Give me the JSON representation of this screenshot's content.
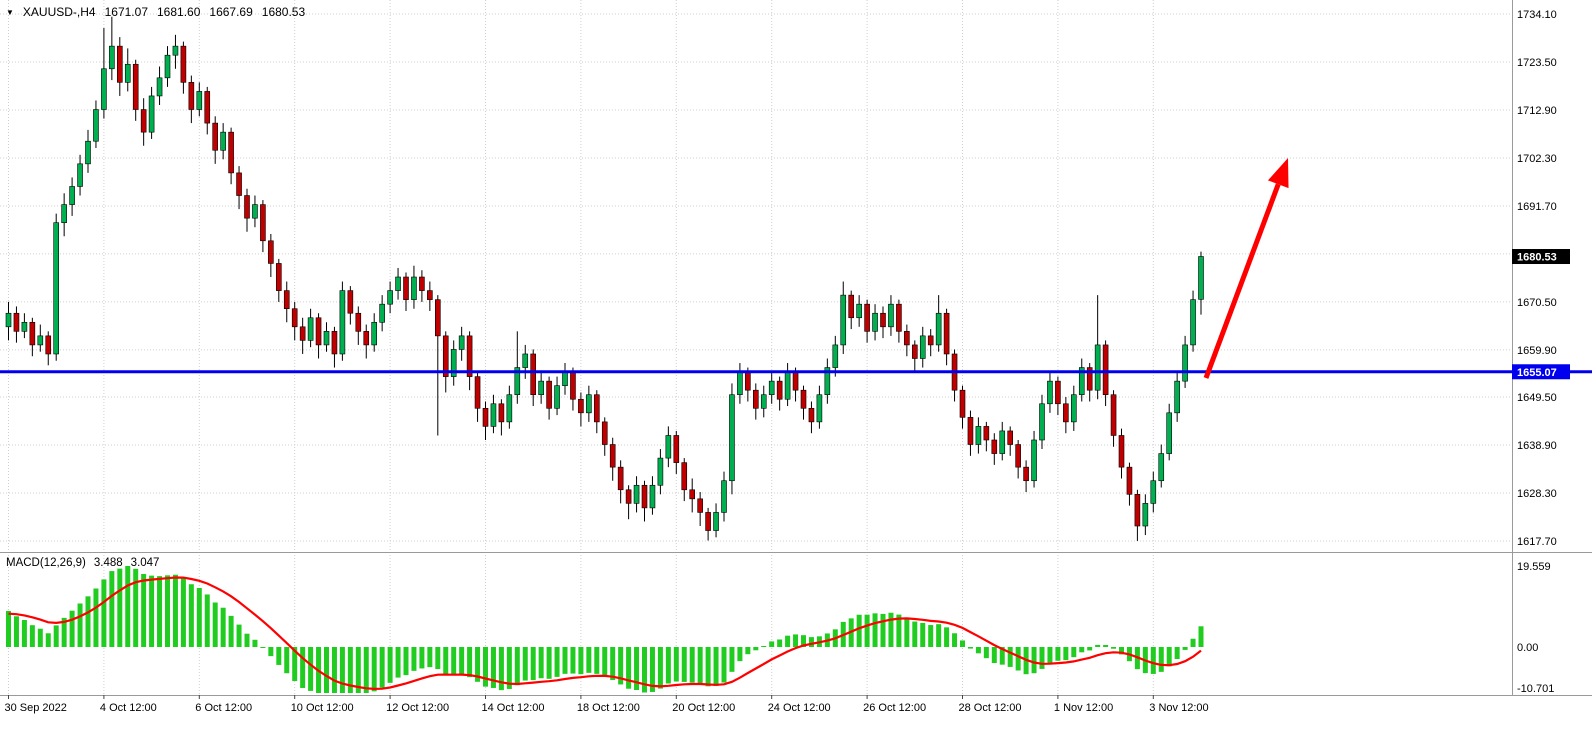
{
  "header": {
    "dropdown_icon": "▼",
    "symbol": "XAUUSD-,H4",
    "open": "1671.07",
    "high": "1681.60",
    "low": "1667.69",
    "close": "1680.53"
  },
  "indicator_label": {
    "name": "MACD(12,26,9)",
    "macd_value": "3.488",
    "signal_value": "3.047"
  },
  "chart_data": {
    "type": "candlestick",
    "symbol": "XAUUSD-",
    "timeframe": "H4",
    "x_axis": {
      "ticks": [
        {
          "i": 0,
          "label": "30 Sep 2022"
        },
        {
          "i": 12,
          "label": "4 Oct 12:00"
        },
        {
          "i": 24,
          "label": "6 Oct 12:00"
        },
        {
          "i": 36,
          "label": "10 Oct 12:00"
        },
        {
          "i": 48,
          "label": "12 Oct 12:00"
        },
        {
          "i": 60,
          "label": "14 Oct 12:00"
        },
        {
          "i": 72,
          "label": "18 Oct 12:00"
        },
        {
          "i": 84,
          "label": "20 Oct 12:00"
        },
        {
          "i": 96,
          "label": "24 Oct 12:00"
        },
        {
          "i": 108,
          "label": "26 Oct 12:00"
        },
        {
          "i": 120,
          "label": "28 Oct 12:00"
        },
        {
          "i": 132,
          "label": "1 Nov 12:00"
        },
        {
          "i": 144,
          "label": "3 Nov 12:00"
        }
      ]
    },
    "y_axis": {
      "ticks": [
        "1734.10",
        "1723.50",
        "1712.90",
        "1702.30",
        "1691.70",
        "1670.50",
        "1659.90",
        "1649.50",
        "1638.90",
        "1628.30",
        "1617.70"
      ],
      "range": [
        1613.0,
        1737.2
      ]
    },
    "current_price_tag": {
      "label": "1680.53",
      "price": 1680.53,
      "bg": "#000000",
      "fg": "#ffffff"
    },
    "horizontal_line": {
      "price": 1655.07,
      "label": "1655.07",
      "color": "#0000ee"
    },
    "trend_arrow": {
      "from": [
        1206,
        378
      ],
      "to": [
        1288,
        158
      ],
      "color": "#ff0000"
    },
    "macd": {
      "name": "MACD",
      "params": [
        12,
        26,
        9
      ],
      "ticks": [
        "19.559",
        "0.00",
        "-10.701"
      ],
      "max": 19.559,
      "min": -10.701,
      "histogram_color": "#1fcc1f",
      "signal_color": "#ff0000"
    },
    "colors": {
      "bull": "#00b050",
      "bear": "#c00000",
      "wick": "#000000",
      "grid": "#cfcfcf",
      "axis_text": "#000000",
      "bg": "#ffffff"
    },
    "candles": [
      [
        1665.0,
        1670.5,
        1662.0,
        1668.0
      ],
      [
        1668.0,
        1669.5,
        1661.5,
        1664.0
      ],
      [
        1664.0,
        1668.0,
        1662.5,
        1666.0
      ],
      [
        1666.0,
        1667.0,
        1658.5,
        1661.0
      ],
      [
        1661.0,
        1665.5,
        1659.5,
        1663.0
      ],
      [
        1663.0,
        1664.0,
        1656.5,
        1659.0
      ],
      [
        1659.0,
        1690.0,
        1657.5,
        1688.0
      ],
      [
        1688.0,
        1694.5,
        1685.0,
        1692.0
      ],
      [
        1692.0,
        1698.0,
        1689.5,
        1696.0
      ],
      [
        1696.0,
        1703.0,
        1694.0,
        1701.0
      ],
      [
        1701.0,
        1708.5,
        1699.0,
        1706.0
      ],
      [
        1706.0,
        1715.0,
        1704.5,
        1713.0
      ],
      [
        1713.0,
        1731.0,
        1711.0,
        1722.0
      ],
      [
        1722.0,
        1733.5,
        1719.5,
        1727.0
      ],
      [
        1727.0,
        1729.0,
        1716.0,
        1719.0
      ],
      [
        1719.0,
        1726.5,
        1717.0,
        1723.0
      ],
      [
        1723.0,
        1724.0,
        1710.5,
        1713.0
      ],
      [
        1713.0,
        1715.5,
        1705.0,
        1708.0
      ],
      [
        1708.0,
        1718.0,
        1706.5,
        1716.0
      ],
      [
        1716.0,
        1722.5,
        1714.0,
        1720.0
      ],
      [
        1720.0,
        1727.0,
        1718.0,
        1725.0
      ],
      [
        1725.0,
        1729.5,
        1722.0,
        1727.0
      ],
      [
        1727.0,
        1728.0,
        1716.5,
        1719.0
      ],
      [
        1719.0,
        1720.5,
        1710.0,
        1713.0
      ],
      [
        1713.0,
        1719.0,
        1711.5,
        1717.0
      ],
      [
        1717.0,
        1718.0,
        1707.5,
        1710.0
      ],
      [
        1710.0,
        1711.5,
        1701.0,
        1704.0
      ],
      [
        1704.0,
        1710.0,
        1702.0,
        1708.0
      ],
      [
        1708.0,
        1709.0,
        1696.5,
        1699.0
      ],
      [
        1699.0,
        1700.5,
        1691.0,
        1694.0
      ],
      [
        1694.0,
        1695.5,
        1686.0,
        1689.0
      ],
      [
        1689.0,
        1694.0,
        1687.0,
        1692.0
      ],
      [
        1692.0,
        1693.0,
        1681.5,
        1684.0
      ],
      [
        1684.0,
        1685.5,
        1676.0,
        1679.0
      ],
      [
        1679.0,
        1680.0,
        1670.5,
        1673.0
      ],
      [
        1673.0,
        1675.0,
        1666.0,
        1669.0
      ],
      [
        1669.0,
        1670.5,
        1662.0,
        1665.0
      ],
      [
        1665.0,
        1667.0,
        1659.0,
        1662.0
      ],
      [
        1662.0,
        1669.0,
        1660.5,
        1667.0
      ],
      [
        1667.0,
        1668.0,
        1658.0,
        1661.0
      ],
      [
        1661.0,
        1666.0,
        1659.5,
        1664.0
      ],
      [
        1664.0,
        1665.0,
        1656.0,
        1659.0
      ],
      [
        1659.0,
        1675.0,
        1657.5,
        1673.0
      ],
      [
        1673.0,
        1674.0,
        1665.5,
        1668.0
      ],
      [
        1668.0,
        1669.5,
        1661.0,
        1664.0
      ],
      [
        1664.0,
        1665.5,
        1658.0,
        1661.0
      ],
      [
        1661.0,
        1668.0,
        1659.5,
        1666.0
      ],
      [
        1666.0,
        1672.0,
        1664.0,
        1670.0
      ],
      [
        1670.0,
        1675.0,
        1668.0,
        1673.0
      ],
      [
        1673.0,
        1678.0,
        1671.0,
        1676.0
      ],
      [
        1676.0,
        1677.0,
        1668.5,
        1671.0
      ],
      [
        1671.0,
        1678.5,
        1669.0,
        1676.0
      ],
      [
        1676.0,
        1677.5,
        1670.5,
        1673.0
      ],
      [
        1673.0,
        1675.0,
        1668.5,
        1671.0
      ],
      [
        1671.0,
        1672.0,
        1641.0,
        1663.0
      ],
      [
        1663.0,
        1664.0,
        1650.5,
        1654.0
      ],
      [
        1654.0,
        1662.0,
        1652.0,
        1660.0
      ],
      [
        1660.0,
        1665.0,
        1657.5,
        1663.0
      ],
      [
        1663.0,
        1664.0,
        1651.0,
        1654.0
      ],
      [
        1654.0,
        1655.0,
        1644.0,
        1647.0
      ],
      [
        1647.0,
        1648.5,
        1640.0,
        1643.0
      ],
      [
        1643.0,
        1650.0,
        1641.5,
        1648.0
      ],
      [
        1648.0,
        1649.0,
        1641.0,
        1644.0
      ],
      [
        1644.0,
        1652.0,
        1642.5,
        1650.0
      ],
      [
        1650.0,
        1664.0,
        1648.0,
        1656.0
      ],
      [
        1656.0,
        1661.0,
        1653.5,
        1659.0
      ],
      [
        1659.0,
        1660.0,
        1647.5,
        1650.0
      ],
      [
        1650.0,
        1655.0,
        1648.0,
        1653.0
      ],
      [
        1653.0,
        1654.0,
        1644.5,
        1647.0
      ],
      [
        1647.0,
        1654.0,
        1645.5,
        1652.0
      ],
      [
        1652.0,
        1657.0,
        1650.0,
        1655.0
      ],
      [
        1655.0,
        1656.0,
        1646.5,
        1649.0
      ],
      [
        1649.0,
        1650.5,
        1643.0,
        1646.0
      ],
      [
        1646.0,
        1652.0,
        1644.0,
        1650.0
      ],
      [
        1650.0,
        1651.0,
        1641.5,
        1644.0
      ],
      [
        1644.0,
        1645.0,
        1636.5,
        1639.0
      ],
      [
        1639.0,
        1640.5,
        1631.0,
        1634.0
      ],
      [
        1634.0,
        1635.5,
        1626.0,
        1629.0
      ],
      [
        1629.0,
        1630.0,
        1622.5,
        1626.0
      ],
      [
        1626.0,
        1632.0,
        1624.0,
        1630.0
      ],
      [
        1630.0,
        1631.0,
        1622.0,
        1625.0
      ],
      [
        1625.0,
        1632.0,
        1623.5,
        1630.0
      ],
      [
        1630.0,
        1638.0,
        1628.0,
        1636.0
      ],
      [
        1636.0,
        1643.0,
        1634.0,
        1641.0
      ],
      [
        1641.0,
        1642.0,
        1632.5,
        1635.0
      ],
      [
        1635.0,
        1636.0,
        1626.5,
        1629.0
      ],
      [
        1629.0,
        1631.5,
        1624.0,
        1627.0
      ],
      [
        1627.0,
        1628.5,
        1621.0,
        1624.0
      ],
      [
        1624.0,
        1625.0,
        1617.8,
        1620.0
      ],
      [
        1620.0,
        1626.0,
        1618.5,
        1624.0
      ],
      [
        1624.0,
        1633.0,
        1622.0,
        1631.0
      ],
      [
        1631.0,
        1652.5,
        1628.0,
        1650.0
      ],
      [
        1650.0,
        1657.0,
        1648.0,
        1655.0
      ],
      [
        1655.0,
        1656.0,
        1648.5,
        1651.0
      ],
      [
        1651.0,
        1652.5,
        1644.5,
        1647.0
      ],
      [
        1647.0,
        1652.0,
        1645.0,
        1650.0
      ],
      [
        1650.0,
        1655.0,
        1648.0,
        1653.0
      ],
      [
        1653.0,
        1654.0,
        1646.5,
        1649.0
      ],
      [
        1649.0,
        1657.0,
        1647.5,
        1655.0
      ],
      [
        1655.0,
        1656.0,
        1648.5,
        1651.0
      ],
      [
        1651.0,
        1652.0,
        1644.5,
        1647.0
      ],
      [
        1647.0,
        1648.5,
        1641.5,
        1644.0
      ],
      [
        1644.0,
        1652.0,
        1642.5,
        1650.0
      ],
      [
        1650.0,
        1658.0,
        1648.0,
        1656.0
      ],
      [
        1656.0,
        1663.0,
        1654.0,
        1661.0
      ],
      [
        1661.0,
        1675.0,
        1659.0,
        1672.0
      ],
      [
        1672.0,
        1673.0,
        1664.5,
        1667.0
      ],
      [
        1667.0,
        1672.0,
        1665.0,
        1670.0
      ],
      [
        1670.0,
        1671.0,
        1661.5,
        1664.0
      ],
      [
        1664.0,
        1670.0,
        1662.0,
        1668.0
      ],
      [
        1668.0,
        1669.5,
        1662.5,
        1665.0
      ],
      [
        1665.0,
        1672.0,
        1663.0,
        1670.0
      ],
      [
        1670.0,
        1671.0,
        1661.5,
        1664.0
      ],
      [
        1664.0,
        1665.5,
        1658.5,
        1661.0
      ],
      [
        1661.0,
        1662.0,
        1655.0,
        1658.0
      ],
      [
        1658.0,
        1665.0,
        1656.0,
        1663.0
      ],
      [
        1663.0,
        1664.5,
        1658.5,
        1661.0
      ],
      [
        1661.0,
        1672.0,
        1659.5,
        1668.0
      ],
      [
        1668.0,
        1669.0,
        1656.5,
        1659.0
      ],
      [
        1659.0,
        1660.0,
        1648.5,
        1651.0
      ],
      [
        1651.0,
        1652.0,
        1642.5,
        1645.0
      ],
      [
        1645.0,
        1646.5,
        1636.5,
        1639.0
      ],
      [
        1639.0,
        1645.0,
        1637.0,
        1643.0
      ],
      [
        1643.0,
        1644.0,
        1637.5,
        1640.0
      ],
      [
        1640.0,
        1641.5,
        1634.5,
        1637.0
      ],
      [
        1637.0,
        1644.0,
        1635.5,
        1642.0
      ],
      [
        1642.0,
        1643.0,
        1636.5,
        1639.0
      ],
      [
        1639.0,
        1640.0,
        1631.5,
        1634.0
      ],
      [
        1634.0,
        1635.5,
        1628.5,
        1631.0
      ],
      [
        1631.0,
        1642.0,
        1629.5,
        1640.0
      ],
      [
        1640.0,
        1650.0,
        1638.0,
        1648.0
      ],
      [
        1648.0,
        1655.0,
        1646.0,
        1653.0
      ],
      [
        1653.0,
        1654.0,
        1645.5,
        1648.0
      ],
      [
        1648.0,
        1649.5,
        1641.5,
        1644.0
      ],
      [
        1644.0,
        1652.0,
        1642.0,
        1650.0
      ],
      [
        1650.0,
        1658.0,
        1648.5,
        1656.0
      ],
      [
        1656.0,
        1657.0,
        1648.5,
        1651.0
      ],
      [
        1651.0,
        1672.0,
        1649.0,
        1661.0
      ],
      [
        1661.0,
        1662.0,
        1647.5,
        1650.0
      ],
      [
        1650.0,
        1651.0,
        1638.5,
        1641.0
      ],
      [
        1641.0,
        1642.5,
        1631.5,
        1634.0
      ],
      [
        1634.0,
        1635.0,
        1625.5,
        1628.0
      ],
      [
        1628.0,
        1629.0,
        1617.7,
        1621.0
      ],
      [
        1621.0,
        1628.0,
        1619.0,
        1626.0
      ],
      [
        1626.0,
        1633.0,
        1624.0,
        1631.0
      ],
      [
        1631.0,
        1639.0,
        1629.5,
        1637.0
      ],
      [
        1637.0,
        1648.0,
        1635.5,
        1646.0
      ],
      [
        1646.0,
        1655.0,
        1644.0,
        1653.0
      ],
      [
        1653.0,
        1663.0,
        1651.5,
        1661.0
      ],
      [
        1661.0,
        1673.0,
        1659.5,
        1671.0
      ],
      [
        1671.07,
        1681.6,
        1667.69,
        1680.53
      ]
    ]
  }
}
